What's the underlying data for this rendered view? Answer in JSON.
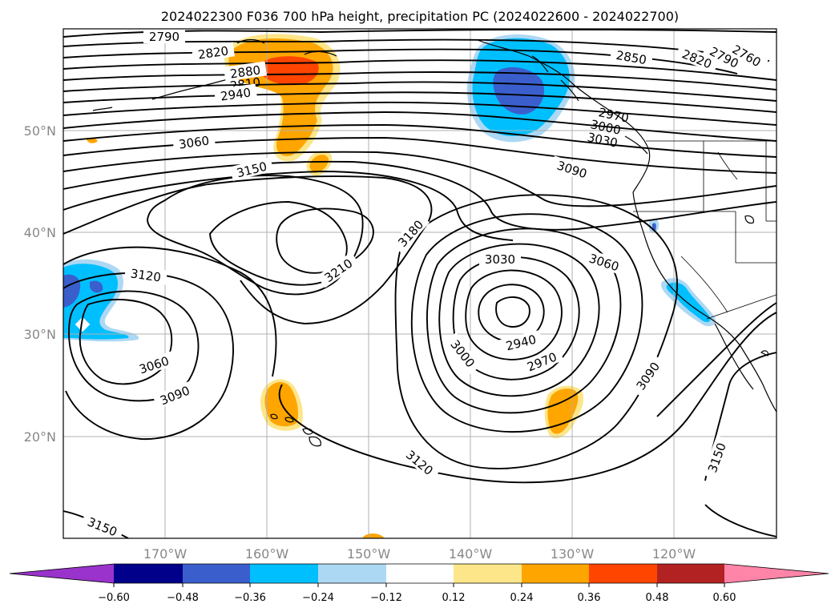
{
  "title": "2024022300 F036 700 hPa height, precipitation PC (2024022600 - 2024022700)",
  "lat_labels": [
    "50°N",
    "40°N",
    "30°N",
    "20°N"
  ],
  "lon_labels": [
    "170°W",
    "160°W",
    "150°W",
    "140°W",
    "130°W",
    "120°W"
  ],
  "contour_labels": [
    "2790",
    "2820",
    "2880",
    "2810",
    "2940",
    "3060",
    "3150",
    "3210",
    "3180",
    "3120",
    "3060",
    "3090",
    "3030",
    "3060",
    "3000",
    "2940",
    "2970",
    "3090",
    "3120",
    "3150",
    "3150",
    "2850",
    "2820",
    "2790",
    "2760",
    "2970",
    "3000",
    "3030",
    "3090"
  ],
  "colorbar": {
    "ticks": [
      "−0.60",
      "−0.48",
      "−0.36",
      "−0.24",
      "−0.12",
      "0.12",
      "0.24",
      "0.36",
      "0.48",
      "0.60"
    ],
    "colors": {
      "lt_m060": "#9933cc",
      "m060_m048": "#00008b",
      "m048_m036": "#3a5fcd",
      "m036_m024": "#00bfff",
      "m024_m012": "#add8f4",
      "m012_p012": "#ffffff",
      "p012_p024": "#fde68a",
      "p024_p036": "#ffa500",
      "p036_p048": "#ff4500",
      "p048_p060": "#b22222",
      "gt_p060": "#ff85a8"
    }
  }
}
